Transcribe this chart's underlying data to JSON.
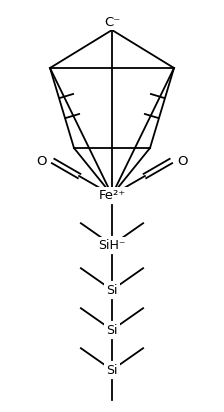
{
  "bg_color": "#ffffff",
  "line_color": "#000000",
  "text_color": "#000000",
  "lw": 1.3,
  "figsize": [
    2.24,
    4.12
  ],
  "dpi": 100,
  "fe_label": "Fe²⁺",
  "c_label": "C⁻",
  "o_left_label": "O",
  "o_right_label": "O",
  "si_labels": [
    "SiH⁻",
    "Si",
    "Si",
    "Si"
  ]
}
